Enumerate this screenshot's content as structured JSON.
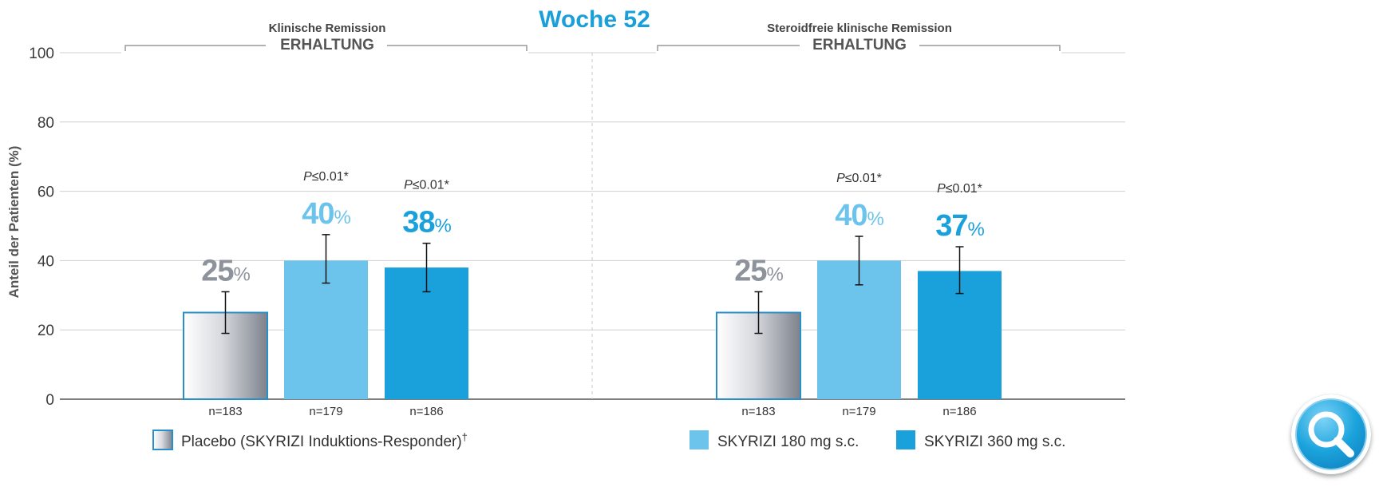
{
  "title": "Woche 52",
  "y_axis_label": "Anteil der Patienten (%)",
  "colors": {
    "title": "#1a9fd9",
    "placebo_text": "#8e939b",
    "light_blue": "#6cc4ec",
    "dark_blue": "#1aa1dc",
    "axis_text": "#3c3c3c",
    "grid": "#d0d0d0"
  },
  "chart_data": {
    "type": "bar",
    "ylim": [
      0,
      100
    ],
    "yticks": [
      0,
      20,
      40,
      60,
      80,
      100
    ],
    "ylabel": "Anteil der Patienten (%)",
    "title": "Woche 52",
    "series_names": [
      "Placebo (SKYRIZI Induktions-Responder)†",
      "SKYRIZI 180 mg s.c.",
      "SKYRIZI 360 mg s.c."
    ],
    "panels": [
      {
        "subtitle": "Klinische Remission",
        "heading": "ERHALTUNG",
        "bars": [
          {
            "series": "placebo",
            "value": 25,
            "label": "25",
            "err_low": 19,
            "err_high": 31,
            "n": "n=183",
            "p": ""
          },
          {
            "series": "skyrizi180",
            "value": 40,
            "label": "40",
            "err_low": 33.5,
            "err_high": 47.5,
            "n": "n=179",
            "p": "≤0.01*"
          },
          {
            "series": "skyrizi360",
            "value": 38,
            "label": "38",
            "err_low": 31,
            "err_high": 45,
            "n": "n=186",
            "p": "≤0.01*"
          }
        ]
      },
      {
        "subtitle": "Steroidfreie klinische Remission",
        "heading": "ERHALTUNG",
        "bars": [
          {
            "series": "placebo",
            "value": 25,
            "label": "25",
            "err_low": 19,
            "err_high": 31,
            "n": "n=183",
            "p": ""
          },
          {
            "series": "skyrizi180",
            "value": 40,
            "label": "40",
            "err_low": 33,
            "err_high": 47,
            "n": "n=179",
            "p": "≤0.01*"
          },
          {
            "series": "skyrizi360",
            "value": 37,
            "label": "37",
            "err_low": 30.5,
            "err_high": 44,
            "n": "n=186",
            "p": "≤0.01*"
          }
        ]
      }
    ]
  },
  "legend": [
    {
      "series": "placebo",
      "label": "Placebo (SKYRIZI Induktions-Responder)",
      "sup": "†"
    },
    {
      "series": "skyrizi180",
      "label": "SKYRIZI 180 mg s.c.",
      "sup": ""
    },
    {
      "series": "skyrizi360",
      "label": "SKYRIZI 360 mg s.c.",
      "sup": ""
    }
  ],
  "p_prefix": "P",
  "percent_sign": "%",
  "zoom_icon": "magnifier-icon"
}
